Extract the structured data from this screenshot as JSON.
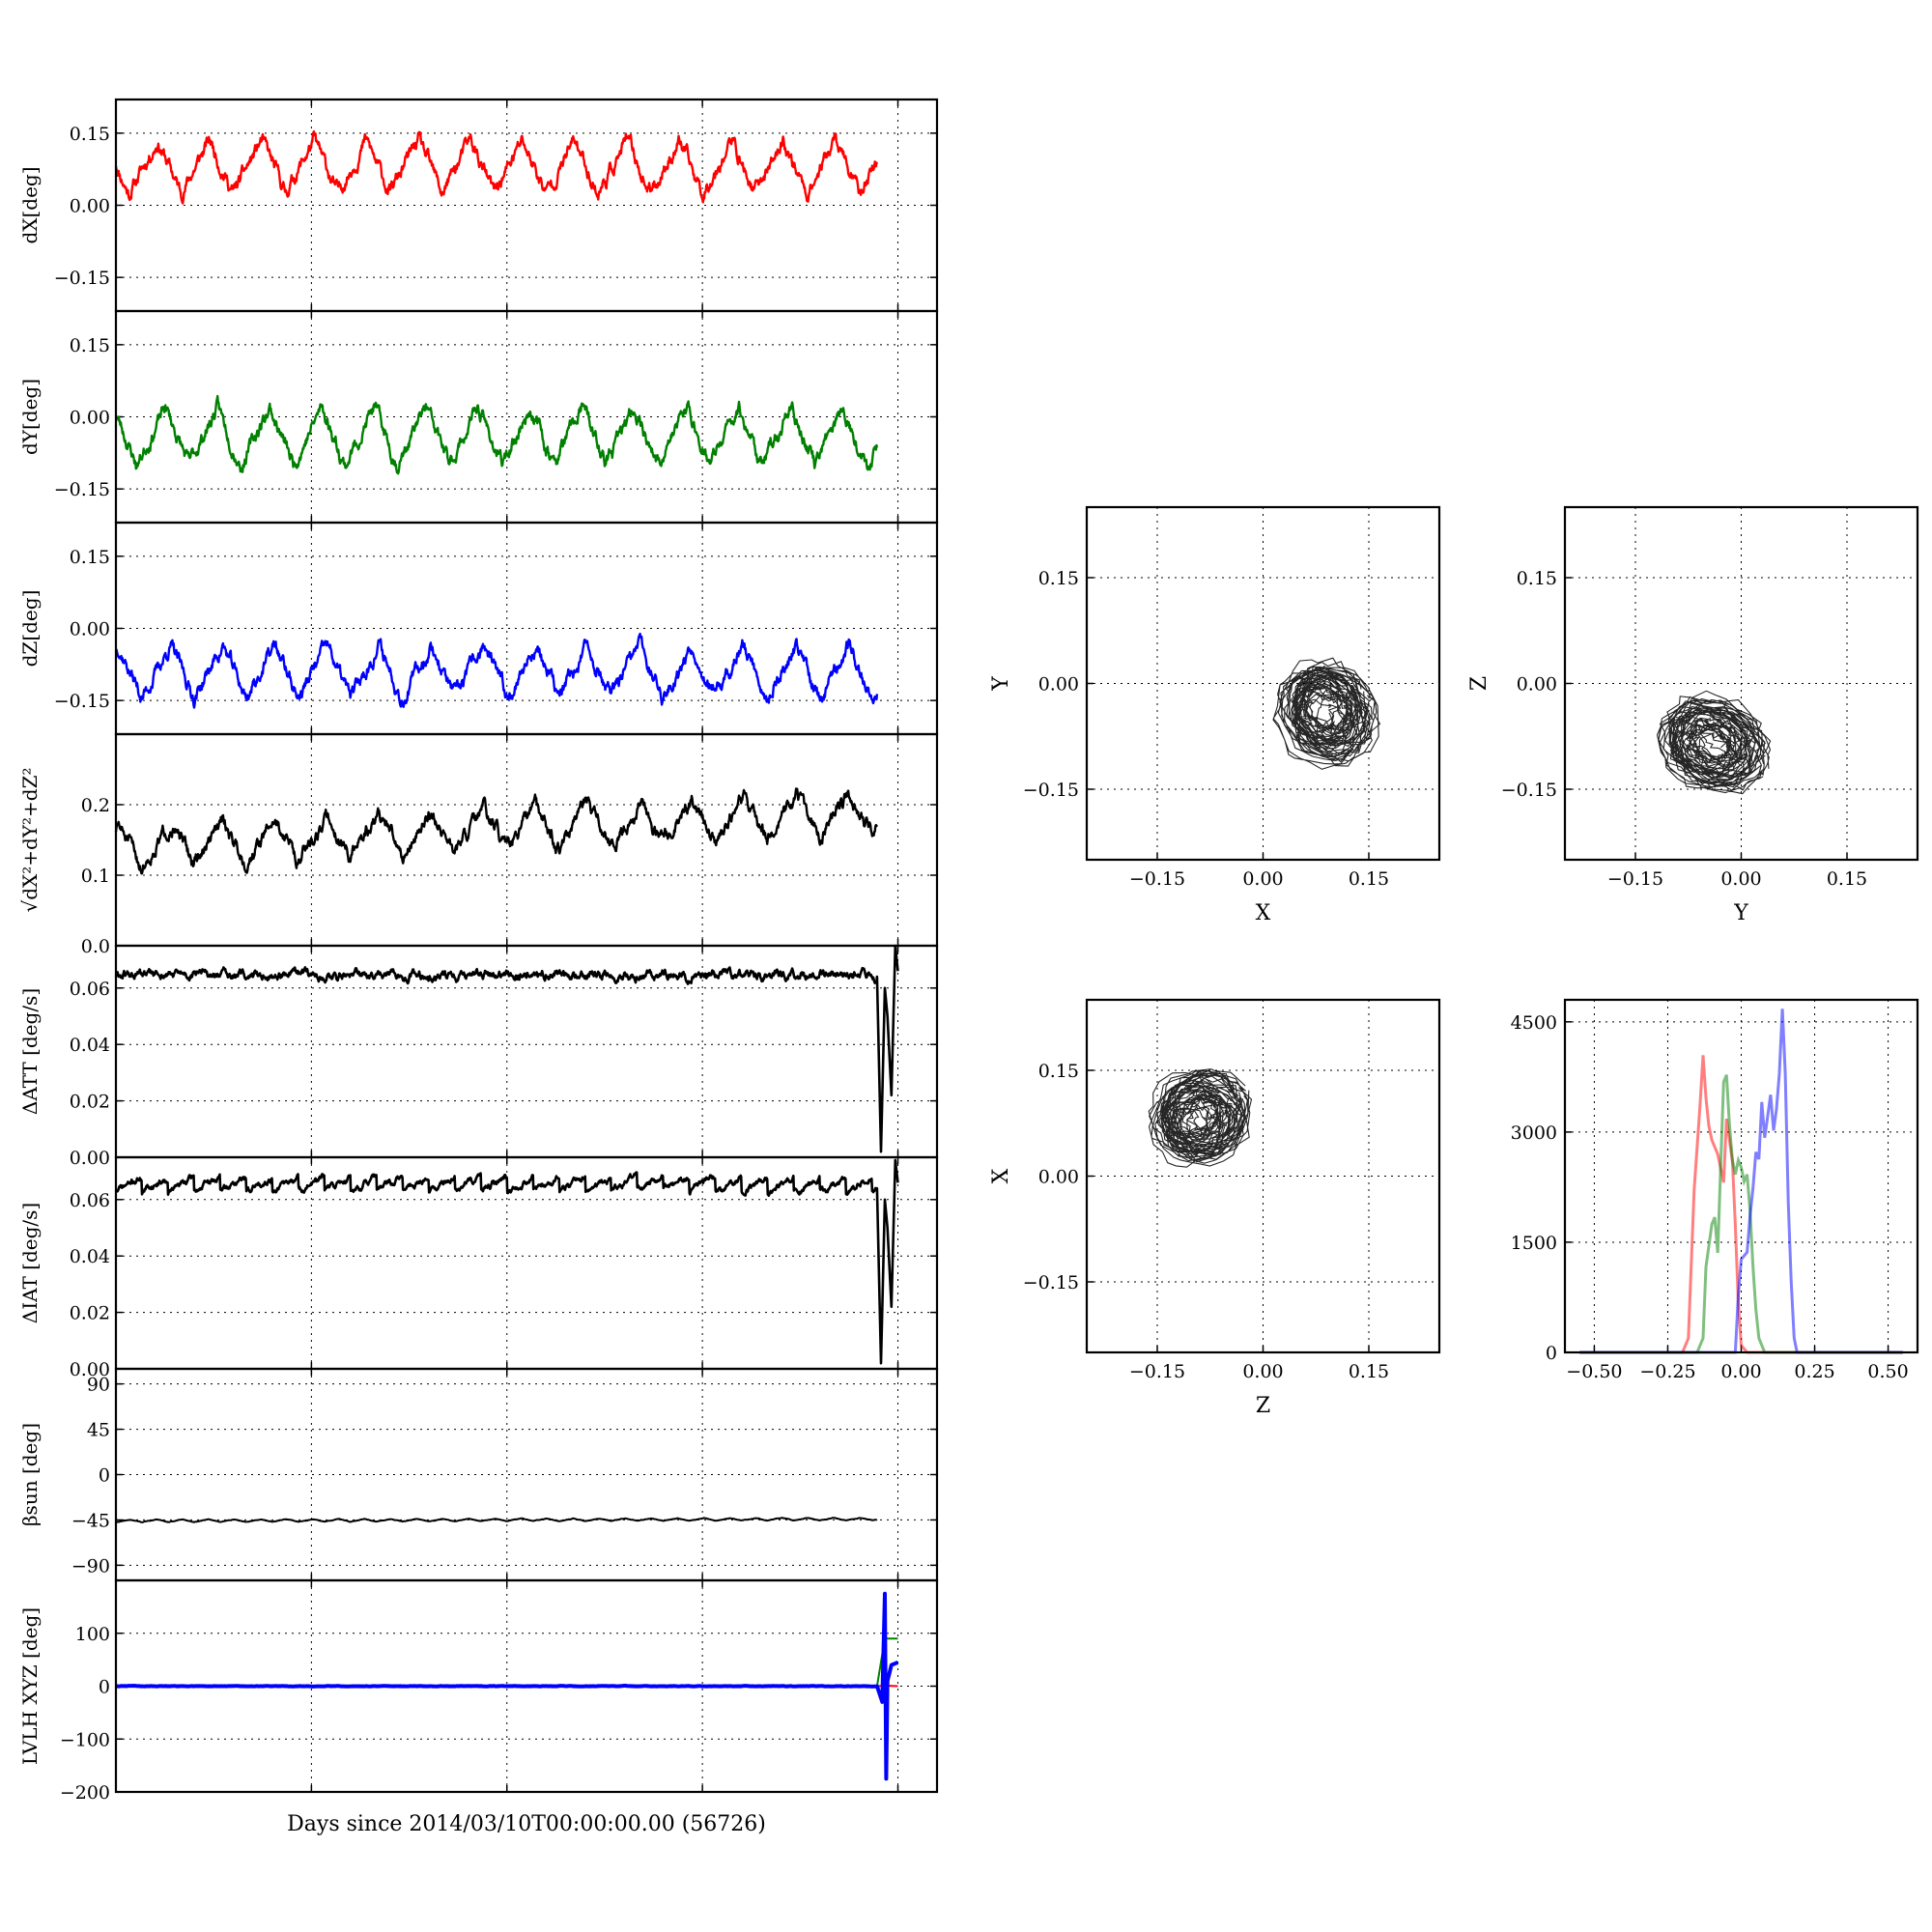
{
  "figure": {
    "xlabel": "Days since 2014/03/10T00:00:00.00 (56726)",
    "xrange": [
      0,
      6.3
    ],
    "xticks": [
      0,
      1.5,
      3.0,
      4.5,
      6.0
    ],
    "grid": true
  },
  "chart_data": [
    {
      "type": "line",
      "id": "dx",
      "ylabel": "dX[deg]",
      "ylim": [
        -0.22,
        0.22
      ],
      "yticks": [
        -0.15,
        0.0,
        0.15
      ],
      "ytick_labels": [
        "−0.15",
        "0.00",
        "0.15"
      ],
      "series": [
        {
          "color": "#ff0000",
          "stroke_width": 2.4,
          "kind": "periodic",
          "mean": 0.08,
          "amp": 0.055,
          "period": 0.4,
          "phase": 0.75,
          "noise": 0.012,
          "seed": 11
        }
      ]
    },
    {
      "type": "line",
      "id": "dy",
      "ylabel": "dY[deg]",
      "ylim": [
        -0.22,
        0.22
      ],
      "yticks": [
        -0.15,
        0.0,
        0.15
      ],
      "ytick_labels": [
        "−0.15",
        "0.00",
        "0.15"
      ],
      "series": [
        {
          "color": "#008000",
          "stroke_width": 2.4,
          "kind": "periodic",
          "mean": -0.04,
          "amp": 0.06,
          "period": 0.4,
          "phase": 0.6,
          "noise": 0.012,
          "seed": 23
        }
      ]
    },
    {
      "type": "line",
      "id": "dz",
      "ylabel": "dZ[deg]",
      "ylim": [
        -0.22,
        0.22
      ],
      "yticks": [
        -0.15,
        0.0,
        0.15
      ],
      "ytick_labels": [
        "−0.15",
        "0.00",
        "0.15"
      ],
      "series": [
        {
          "color": "#0000ff",
          "stroke_width": 2.4,
          "kind": "periodic",
          "mean": -0.09,
          "amp": 0.055,
          "period": 0.4,
          "phase": 0.5,
          "noise": 0.012,
          "seed": 37
        }
      ]
    },
    {
      "type": "line",
      "id": "dr",
      "ylabel": "√dX²+dY²+dZ²",
      "ylim": [
        0.0,
        0.3
      ],
      "yticks": [
        0.0,
        0.1,
        0.2
      ],
      "ytick_labels": [
        "0.0",
        "0.1",
        "0.2"
      ],
      "series": [
        {
          "color": "#000000",
          "stroke_width": 2.4,
          "kind": "periodic",
          "mean": 0.14,
          "trend": 0.005,
          "amp": 0.03,
          "period": 0.4,
          "phase": 0.5,
          "noise": 0.008,
          "seed": 51
        }
      ]
    },
    {
      "type": "line",
      "id": "datt",
      "ylabel": "ΔATT [deg/s]",
      "ylim": [
        0.0,
        0.075
      ],
      "yticks": [
        0.0,
        0.02,
        0.04,
        0.06
      ],
      "ytick_labels": [
        "0.00",
        "0.02",
        "0.04",
        "0.06"
      ],
      "series": [
        {
          "color": "#000000",
          "stroke_width": 2.6,
          "kind": "flat",
          "level": 0.0645,
          "noise": 0.0012,
          "seed": 61,
          "spikes": [
            [
              5.84,
              0.064
            ],
            [
              5.87,
              0.002
            ],
            [
              5.9,
              0.06
            ],
            [
              5.92,
              0.05
            ],
            [
              5.95,
              0.022
            ],
            [
              5.98,
              0.075
            ],
            [
              6.0,
              0.066
            ]
          ]
        }
      ]
    },
    {
      "type": "line",
      "id": "diat",
      "ylabel": "ΔIAT [deg/s]",
      "ylim": [
        0.0,
        0.075
      ],
      "yticks": [
        0.0,
        0.02,
        0.04,
        0.06
      ],
      "ytick_labels": [
        "0.00",
        "0.02",
        "0.04",
        "0.06"
      ],
      "series": [
        {
          "color": "#000000",
          "stroke_width": 2.6,
          "kind": "sawtooth",
          "level": 0.0655,
          "amp": 0.0025,
          "period": 0.2,
          "noise": 0.0009,
          "seed": 71,
          "spikes": [
            [
              5.84,
              0.064
            ],
            [
              5.87,
              0.002
            ],
            [
              5.9,
              0.06
            ],
            [
              5.92,
              0.05
            ],
            [
              5.95,
              0.022
            ],
            [
              5.98,
              0.074
            ],
            [
              6.0,
              0.066
            ]
          ]
        }
      ]
    },
    {
      "type": "line",
      "id": "beta",
      "ylabel": "βsun [deg]",
      "ylim": [
        -105,
        105
      ],
      "yticks": [
        -90,
        -45,
        0,
        45,
        90
      ],
      "ytick_labels": [
        "−90",
        "−45",
        "0",
        "45",
        "90"
      ],
      "series": [
        {
          "color": "#000000",
          "stroke_width": 2.0,
          "kind": "periodic",
          "mean": -46,
          "trend": 0.2,
          "amp": 1.3,
          "period": 0.2,
          "phase": 0.0,
          "noise": 0.2,
          "seed": 81
        }
      ]
    },
    {
      "type": "line",
      "id": "lvlh",
      "ylabel": "LVLH XYZ [deg]",
      "ylim": [
        -200,
        200
      ],
      "yticks": [
        -200,
        -100,
        0,
        100
      ],
      "ytick_labels": [
        "−200",
        "−100",
        "0",
        "100"
      ],
      "series": [
        {
          "color": "#ff0000",
          "stroke_width": 2.0,
          "kind": "flat",
          "level": 0.0,
          "noise": 0.2,
          "seed": 91,
          "spikes": [
            [
              5.84,
              0
            ],
            [
              5.9,
              1
            ],
            [
              6.0,
              0
            ]
          ]
        },
        {
          "color": "#008000",
          "stroke_width": 2.0,
          "kind": "flat",
          "level": 0.0,
          "noise": 0.2,
          "seed": 92,
          "spikes": [
            [
              5.84,
              0
            ],
            [
              5.9,
              90
            ],
            [
              6.0,
              90
            ]
          ]
        },
        {
          "color": "#0000ff",
          "stroke_width": 4.0,
          "kind": "flat",
          "level": 0.0,
          "noise": 0.3,
          "seed": 93,
          "spikes": [
            [
              5.84,
              0
            ],
            [
              5.88,
              -30
            ],
            [
              5.9,
              175
            ],
            [
              5.91,
              -175
            ],
            [
              5.92,
              10
            ],
            [
              5.95,
              40
            ],
            [
              6.0,
              45
            ]
          ]
        }
      ]
    },
    {
      "type": "scatter",
      "id": "xy",
      "xlabel": "X",
      "ylabel": "Y",
      "xlim": [
        -0.25,
        0.25
      ],
      "ylim": [
        -0.25,
        0.25
      ],
      "xticks": [
        -0.15,
        0.0,
        0.15
      ],
      "yticks": [
        -0.15,
        0.0,
        0.15
      ],
      "xtick_labels": [
        "−0.15",
        "0.00",
        "0.15"
      ],
      "ytick_labels": [
        "−0.15",
        "0.00",
        "0.15"
      ],
      "cloud": {
        "cx": 0.09,
        "cy": -0.04,
        "rx": 0.055,
        "ry": 0.065,
        "tilt": 0.55,
        "seed": 101
      }
    },
    {
      "type": "scatter",
      "id": "yz",
      "xlabel": "Y",
      "ylabel": "Z",
      "xlim": [
        -0.25,
        0.25
      ],
      "ylim": [
        -0.25,
        0.25
      ],
      "xticks": [
        -0.15,
        0.0,
        0.15
      ],
      "yticks": [
        -0.15,
        0.0,
        0.15
      ],
      "xtick_labels": [
        "−0.15",
        "0.00",
        "0.15"
      ],
      "ytick_labels": [
        "−0.15",
        "0.00",
        "0.15"
      ],
      "cloud": {
        "cx": -0.04,
        "cy": -0.085,
        "rx": 0.065,
        "ry": 0.05,
        "tilt": -0.45,
        "seed": 102
      }
    },
    {
      "type": "scatter",
      "id": "zx",
      "xlabel": "Z",
      "ylabel": "X",
      "xlim": [
        -0.25,
        0.25
      ],
      "ylim": [
        -0.25,
        0.25
      ],
      "xticks": [
        -0.15,
        0.0,
        0.15
      ],
      "yticks": [
        -0.15,
        0.0,
        0.15
      ],
      "xtick_labels": [
        "−0.15",
        "0.00",
        "0.15"
      ],
      "ytick_labels": [
        "−0.15",
        "0.00",
        "0.15"
      ],
      "cloud": {
        "cx": -0.09,
        "cy": 0.08,
        "rx": 0.06,
        "ry": 0.055,
        "tilt": 0.5,
        "seed": 103
      }
    },
    {
      "type": "line",
      "id": "hist",
      "xlabel": "",
      "ylabel": "",
      "xlim": [
        -0.6,
        0.6
      ],
      "ylim": [
        0,
        4800
      ],
      "xticks": [
        -0.5,
        -0.25,
        0.0,
        0.25,
        0.5
      ],
      "yticks": [
        0,
        1500,
        3000,
        4500
      ],
      "xtick_labels": [
        "−0.50",
        "−0.25",
        "0.00",
        "0.25",
        "0.50"
      ],
      "ytick_labels": [
        "0",
        "1500",
        "3000",
        "4500"
      ],
      "series": [
        {
          "color": "#ff0000",
          "opacity": 0.5,
          "points": [
            [
              -0.55,
              0
            ],
            [
              -0.2,
              0
            ],
            [
              -0.18,
              200
            ],
            [
              -0.16,
              2300
            ],
            [
              -0.14,
              3500
            ],
            [
              -0.13,
              4200
            ],
            [
              -0.12,
              3600
            ],
            [
              -0.11,
              3200
            ],
            [
              -0.1,
              3000
            ],
            [
              -0.08,
              2800
            ],
            [
              -0.06,
              2400
            ],
            [
              -0.05,
              3300
            ],
            [
              -0.04,
              3000
            ],
            [
              -0.03,
              2700
            ],
            [
              -0.02,
              1800
            ],
            [
              -0.01,
              700
            ],
            [
              0.0,
              100
            ],
            [
              0.02,
              0
            ],
            [
              0.55,
              0
            ]
          ]
        },
        {
          "color": "#008000",
          "opacity": 0.5,
          "points": [
            [
              -0.55,
              0
            ],
            [
              -0.15,
              0
            ],
            [
              -0.13,
              200
            ],
            [
              -0.12,
              1200
            ],
            [
              -0.1,
              1800
            ],
            [
              -0.09,
              1900
            ],
            [
              -0.08,
              1400
            ],
            [
              -0.07,
              2600
            ],
            [
              -0.06,
              3800
            ],
            [
              -0.05,
              3900
            ],
            [
              -0.04,
              3200
            ],
            [
              -0.03,
              2700
            ],
            [
              -0.02,
              2500
            ],
            [
              -0.01,
              2700
            ],
            [
              0.0,
              2600
            ],
            [
              0.01,
              2400
            ],
            [
              0.02,
              2500
            ],
            [
              0.03,
              2000
            ],
            [
              0.04,
              1200
            ],
            [
              0.05,
              600
            ],
            [
              0.06,
              200
            ],
            [
              0.08,
              0
            ],
            [
              0.55,
              0
            ]
          ]
        },
        {
          "color": "#0000ff",
          "opacity": 0.5,
          "points": [
            [
              -0.55,
              0
            ],
            [
              -0.02,
              0
            ],
            [
              -0.01,
              800
            ],
            [
              0.0,
              1300
            ],
            [
              0.02,
              1400
            ],
            [
              0.03,
              1900
            ],
            [
              0.04,
              2300
            ],
            [
              0.05,
              2800
            ],
            [
              0.06,
              2700
            ],
            [
              0.07,
              3500
            ],
            [
              0.08,
              3000
            ],
            [
              0.09,
              3300
            ],
            [
              0.1,
              3600
            ],
            [
              0.11,
              3100
            ],
            [
              0.12,
              3400
            ],
            [
              0.13,
              3900
            ],
            [
              0.14,
              4800
            ],
            [
              0.15,
              3900
            ],
            [
              0.16,
              2100
            ],
            [
              0.17,
              1000
            ],
            [
              0.18,
              200
            ],
            [
              0.19,
              0
            ],
            [
              0.55,
              0
            ]
          ]
        }
      ]
    }
  ]
}
